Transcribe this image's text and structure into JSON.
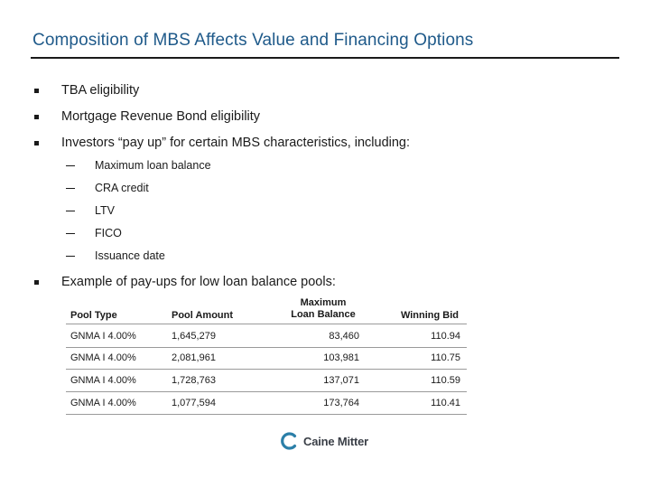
{
  "slide": {
    "title": "Composition of MBS Affects Value and Financing Options",
    "bullets": [
      "TBA eligibility",
      "Mortgage Revenue Bond eligibility",
      "Investors “pay up” for certain MBS characteristics, including:"
    ],
    "sub_bullets": [
      "Maximum loan balance",
      "CRA credit",
      "LTV",
      "FICO",
      "Issuance date"
    ],
    "example_bullet": "Example of pay-ups for low loan balance pools:"
  },
  "table": {
    "headers": {
      "pool_type": "Pool Type",
      "pool_amount": "Pool Amount",
      "max_line1": "Maximum",
      "max_line2": "Loan Balance",
      "winning_bid": "Winning Bid"
    },
    "rows": [
      {
        "pool_type": "GNMA I 4.00%",
        "pool_amount": "1,645,279",
        "max_loan_balance": "83,460",
        "winning_bid": "110.94"
      },
      {
        "pool_type": "GNMA I 4.00%",
        "pool_amount": "2,081,961",
        "max_loan_balance": "103,981",
        "winning_bid": "110.75"
      },
      {
        "pool_type": "GNMA I 4.00%",
        "pool_amount": "1,728,763",
        "max_loan_balance": "137,071",
        "winning_bid": "110.59"
      },
      {
        "pool_type": "GNMA I 4.00%",
        "pool_amount": "1,077,594",
        "max_loan_balance": "173,764",
        "winning_bid": "110.41"
      }
    ]
  },
  "footer": {
    "logo_text": "Caine Mitter",
    "logo_color": "#2b7fa8"
  }
}
